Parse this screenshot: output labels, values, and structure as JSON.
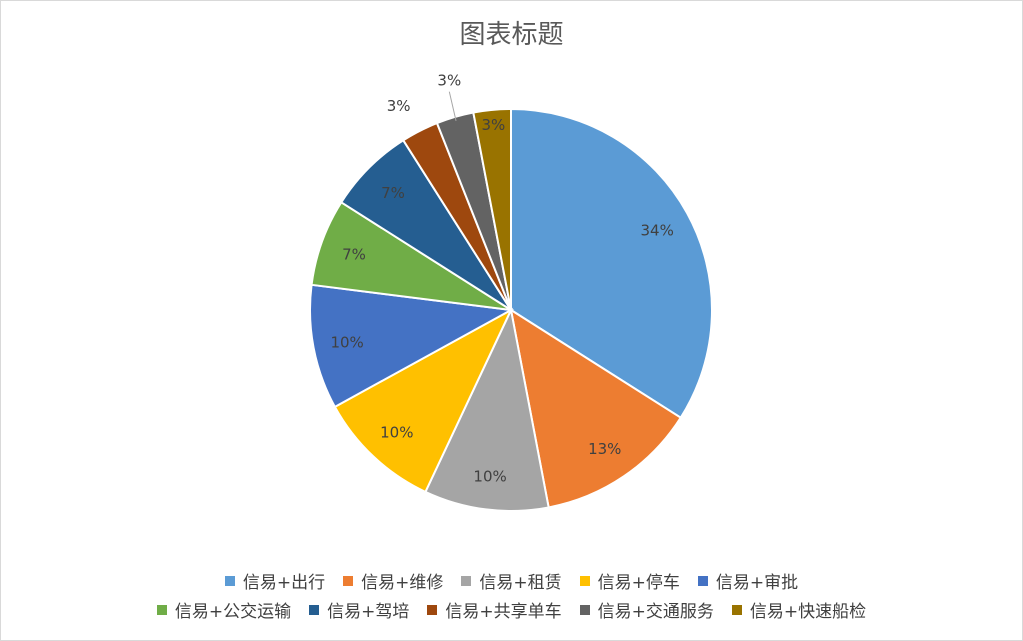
{
  "chart_data": {
    "type": "pie",
    "title": "图表标题",
    "slices": [
      {
        "label": "信易+出行",
        "value": 34,
        "data_label": "34%",
        "color": "#5B9BD5"
      },
      {
        "label": "信易+维修",
        "value": 13,
        "data_label": "13%",
        "color": "#ED7D31"
      },
      {
        "label": "信易+租赁",
        "value": 10,
        "data_label": "10%",
        "color": "#A5A5A5"
      },
      {
        "label": "信易+停车",
        "value": 10,
        "data_label": "10%",
        "color": "#FFC000"
      },
      {
        "label": "信易+审批",
        "value": 10,
        "data_label": "10%",
        "color": "#4472C4"
      },
      {
        "label": "信易+公交运输",
        "value": 7,
        "data_label": "7%",
        "color": "#70AD47"
      },
      {
        "label": "信易+驾培",
        "value": 7,
        "data_label": "7%",
        "color": "#255E91"
      },
      {
        "label": "信易+共享单车",
        "value": 3,
        "data_label": "3%",
        "color": "#9E480E"
      },
      {
        "label": "信易+交通服务",
        "value": 3,
        "data_label": "3%",
        "color": "#636363"
      },
      {
        "label": "信易+快速船检",
        "value": 3,
        "data_label": "3%",
        "color": "#997300"
      }
    ],
    "legend_position": "bottom"
  }
}
